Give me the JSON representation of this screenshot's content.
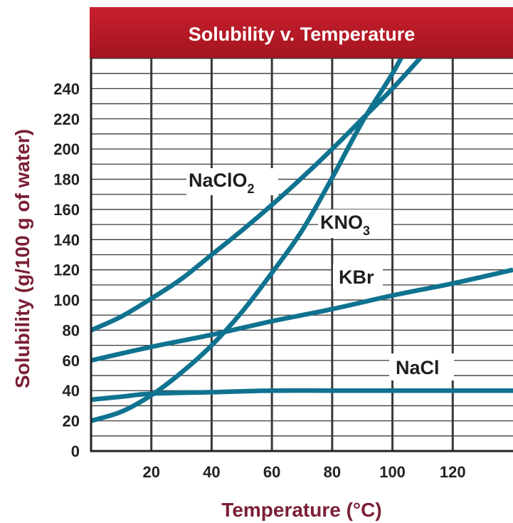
{
  "chart_data": {
    "type": "line",
    "title": "Solubility v. Temperature",
    "xlabel": "Temperature (°C)",
    "ylabel": "Solubility (g/100 g of water)",
    "xlim": [
      0,
      140
    ],
    "ylim": [
      0,
      260
    ],
    "x_ticks": [
      20,
      40,
      60,
      80,
      100,
      120
    ],
    "y_ticks": [
      0,
      20,
      40,
      60,
      80,
      100,
      120,
      140,
      160,
      180,
      200,
      220,
      240
    ],
    "grid": true,
    "colors": {
      "title_bar": "#b31b29",
      "grid": "#3a3a3a",
      "line": "#0f7390",
      "axis_title": "#7a1f35"
    },
    "series": [
      {
        "name": "NaClO2",
        "label_main": "NaClO",
        "label_sub": "2",
        "x": [
          0,
          10,
          20,
          30,
          40,
          50,
          60,
          70,
          80,
          90,
          100,
          110
        ],
        "y": [
          80,
          89,
          101,
          114,
          130,
          146,
          163,
          181,
          200,
          220,
          240,
          262
        ]
      },
      {
        "name": "KNO3",
        "label_main": "KNO",
        "label_sub": "3",
        "x": [
          0,
          10,
          20,
          30,
          40,
          50,
          60,
          70,
          80,
          90,
          100,
          106
        ],
        "y": [
          20,
          26,
          37,
          52,
          70,
          92,
          118,
          146,
          181,
          218,
          250,
          272
        ]
      },
      {
        "name": "KBr",
        "label_main": "KBr",
        "label_sub": "",
        "x": [
          0,
          20,
          40,
          60,
          80,
          100,
          120,
          140
        ],
        "y": [
          60,
          69,
          77,
          86,
          94,
          103,
          111,
          120
        ]
      },
      {
        "name": "NaCl",
        "label_main": "NaCl",
        "label_sub": "",
        "x": [
          0,
          10,
          20,
          40,
          60,
          80,
          100,
          120,
          140
        ],
        "y": [
          34,
          36,
          38,
          39,
          40,
          40,
          40,
          40,
          40
        ]
      }
    ]
  }
}
